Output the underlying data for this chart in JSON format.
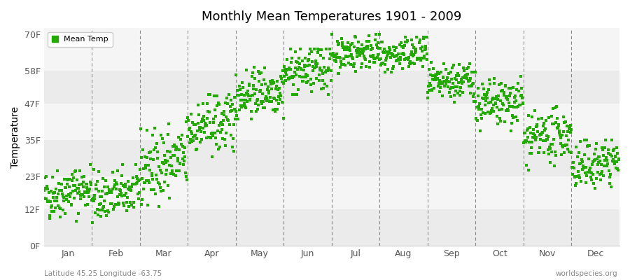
{
  "title": "Monthly Mean Temperatures 1901 - 2009",
  "ylabel": "Temperature",
  "subtitle_left": "Latitude 45.25 Longitude -63.75",
  "subtitle_right": "worldspecies.org",
  "yticks": [
    0,
    12,
    23,
    35,
    47,
    58,
    70
  ],
  "ytick_labels": [
    "0F",
    "12F",
    "23F",
    "35F",
    "47F",
    "58F",
    "70F"
  ],
  "ylim": [
    0,
    72
  ],
  "months": [
    "Jan",
    "Feb",
    "Mar",
    "Apr",
    "May",
    "Jun",
    "Jul",
    "Aug",
    "Sep",
    "Oct",
    "Nov",
    "Dec"
  ],
  "dot_color": "#22AA00",
  "bg_stripe1": "#EBEBEB",
  "bg_stripe2": "#F5F5F5",
  "legend_label": "Mean Temp",
  "n_years": 109,
  "monthly_means": [
    18,
    17,
    27,
    40,
    51,
    58,
    64,
    63,
    54,
    47,
    36,
    27
  ],
  "monthly_stds": [
    4,
    4,
    6,
    5,
    4,
    4,
    3,
    3,
    3,
    4,
    4,
    4
  ],
  "monthly_mins": [
    5,
    4,
    13,
    27,
    42,
    50,
    57,
    56,
    47,
    38,
    25,
    17
  ],
  "monthly_maxs": [
    27,
    27,
    41,
    50,
    59,
    65,
    70,
    69,
    61,
    56,
    46,
    35
  ],
  "trend_per_year": [
    0.03,
    0.03,
    0.04,
    0.03,
    0.02,
    0.02,
    0.02,
    0.02,
    0.02,
    0.02,
    0.03,
    0.03
  ]
}
